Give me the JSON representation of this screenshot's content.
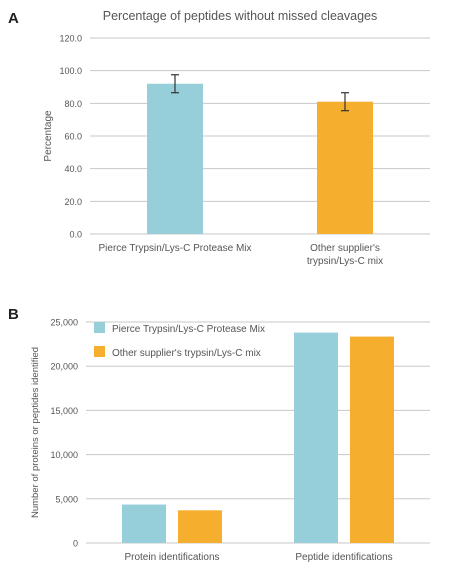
{
  "colors": {
    "pierce": "#96cfd9",
    "other": "#f5ae2e",
    "grid": "#c8c8c8",
    "text": "#555555",
    "errorbar": "#333333"
  },
  "panel_a": {
    "letter": "A"
  },
  "panel_b": {
    "letter": "B"
  },
  "chart_data": [
    {
      "type": "bar",
      "title": "Percentage of peptides without missed cleavages",
      "ylabel": "Percentage",
      "xlabel": "",
      "ylim": [
        0,
        120
      ],
      "yticks": [
        "0.0",
        "20.0",
        "40.0",
        "60.0",
        "80.0",
        "100.0",
        "120.0"
      ],
      "grid": true,
      "categories": [
        [
          "Pierce Trypsin/Lys-C Protease Mix"
        ],
        [
          "Other supplier's",
          "trypsin/Lys-C mix"
        ]
      ],
      "values": [
        92,
        81
      ],
      "errors": [
        5.5,
        5.5
      ],
      "bar_colors": [
        "#96cfd9",
        "#f5ae2e"
      ]
    },
    {
      "type": "bar",
      "title": "",
      "ylabel": "Number of proteins or peptides identified",
      "xlabel": "",
      "ylim": [
        0,
        25000
      ],
      "yticks": [
        "0",
        "5,000",
        "10,000",
        "15,000",
        "20,000",
        "25,000"
      ],
      "grid": true,
      "legend": "top-left",
      "categories": [
        "Protein identifications",
        "Peptide identifications"
      ],
      "series": [
        {
          "name": "Pierce Trypsin/Lys-C Protease Mix",
          "color": "#96cfd9",
          "values": [
            4350,
            23800
          ]
        },
        {
          "name": "Other supplier's trypsin/Lys-C mix",
          "color": "#f5ae2e",
          "values": [
            3700,
            23350
          ]
        }
      ]
    }
  ]
}
